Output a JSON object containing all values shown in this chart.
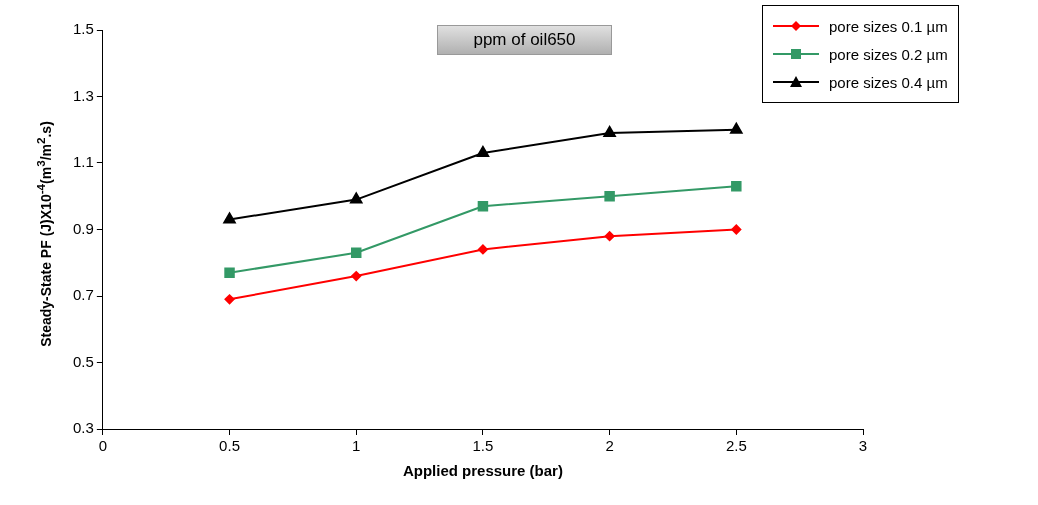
{
  "chart_data": {
    "type": "line",
    "title": "ppm of oil650",
    "xlabel": "Applied pressure (bar)",
    "ylabel": "Steady-State PF (J)X10$^{-4}$(m$^{3}$/m$^{2}$.s)",
    "x": [
      0.5,
      1,
      1.5,
      2,
      2.5
    ],
    "series": [
      {
        "name": "pore sizes 0.1 µm",
        "color": "#ff0000",
        "marker": "diamond",
        "values": [
          0.69,
          0.76,
          0.84,
          0.88,
          0.9
        ]
      },
      {
        "name": "pore sizes 0.2 µm",
        "color": "#339966",
        "marker": "square",
        "values": [
          0.77,
          0.83,
          0.97,
          1.0,
          1.03
        ]
      },
      {
        "name": "pore sizes 0.4 µm",
        "color": "#000000",
        "marker": "triangle",
        "values": [
          0.93,
          0.99,
          1.13,
          1.19,
          1.2
        ]
      }
    ],
    "xlim": [
      0,
      3
    ],
    "xticks": [
      0,
      0.5,
      1,
      1.5,
      2,
      2.5,
      3
    ],
    "ylim": [
      0.3,
      1.5
    ],
    "yticks": [
      0.3,
      0.5,
      0.7,
      0.9,
      1.1,
      1.3,
      1.5
    ],
    "grid": false,
    "legend": "top right",
    "line_style": "solid"
  }
}
